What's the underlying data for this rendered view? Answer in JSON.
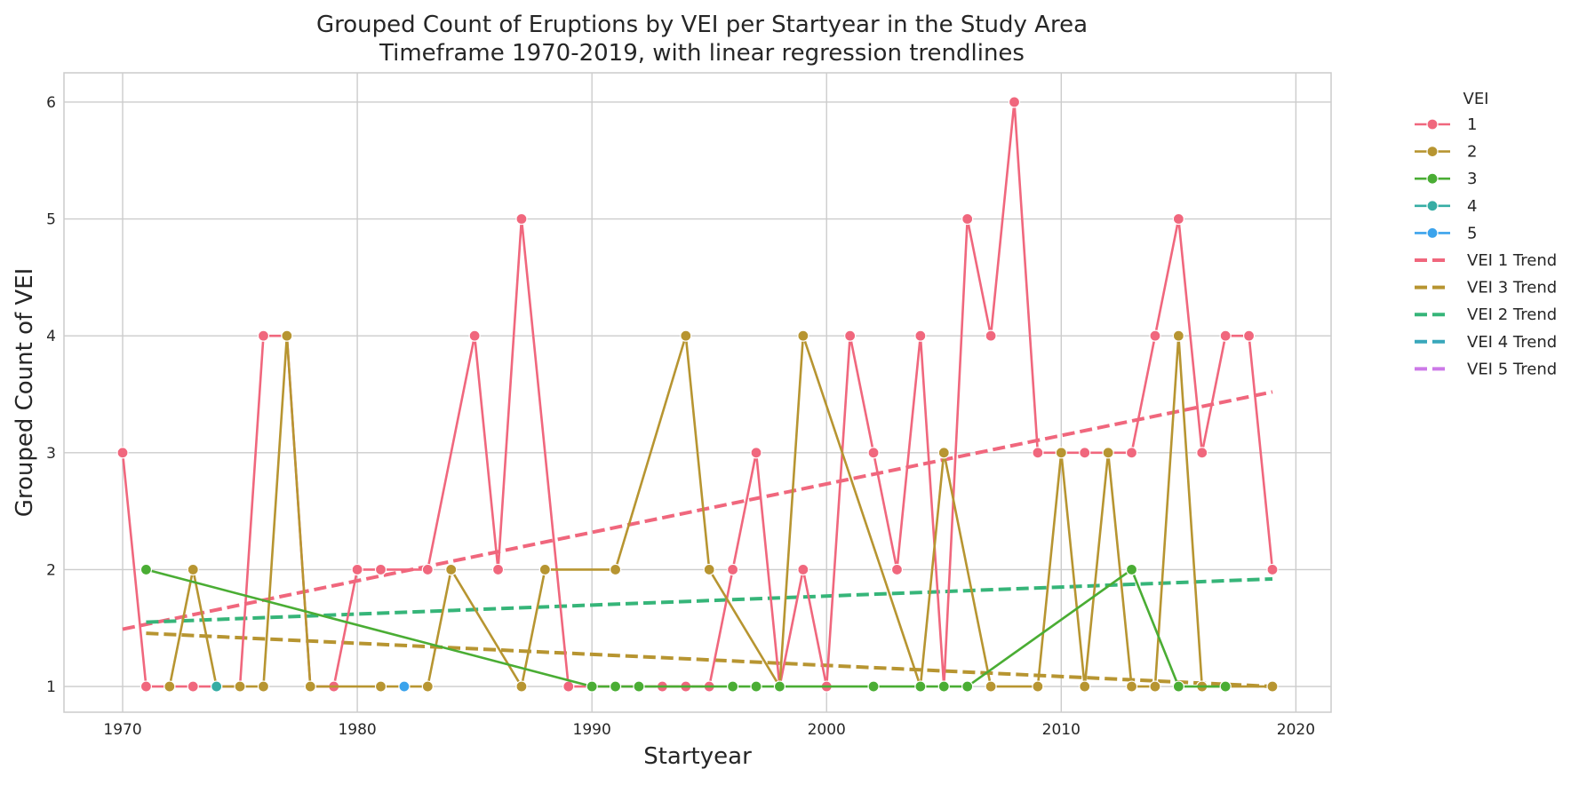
{
  "chart_data": {
    "type": "line",
    "title_lines": [
      "Grouped Count of Eruptions by VEI per Startyear in the Study Area",
      "Timeframe 1970-2019, with linear regression trendlines"
    ],
    "xlabel": "Startyear",
    "ylabel": "Grouped Count of VEI",
    "xlim": [
      1967.5,
      2021.5
    ],
    "ylim": [
      0.78,
      6.25
    ],
    "xticks": [
      1970,
      1980,
      1990,
      2000,
      2010,
      2020
    ],
    "yticks": [
      1,
      2,
      3,
      4,
      5,
      6
    ],
    "grid": true,
    "legend": {
      "title": "VEI",
      "placement": "outside-right"
    },
    "series": [
      {
        "name": "1",
        "color": "#f0677d",
        "points": [
          [
            1970,
            3
          ],
          [
            1971,
            1
          ],
          [
            1972,
            1
          ],
          [
            1973,
            1
          ],
          [
            1975,
            1
          ],
          [
            1976,
            4
          ],
          [
            1977,
            4
          ],
          [
            1978,
            1
          ],
          [
            1979,
            1
          ],
          [
            1980,
            2
          ],
          [
            1981,
            2
          ],
          [
            1983,
            2
          ],
          [
            1985,
            4
          ],
          [
            1986,
            2
          ],
          [
            1987,
            5
          ],
          [
            1989,
            1
          ],
          [
            1990,
            1
          ],
          [
            1991,
            1
          ],
          [
            1993,
            1
          ],
          [
            1994,
            1
          ],
          [
            1995,
            1
          ],
          [
            1996,
            2
          ],
          [
            1997,
            3
          ],
          [
            1998,
            1
          ],
          [
            1999,
            2
          ],
          [
            2000,
            1
          ],
          [
            2001,
            4
          ],
          [
            2002,
            3
          ],
          [
            2003,
            2
          ],
          [
            2004,
            4
          ],
          [
            2005,
            1
          ],
          [
            2006,
            5
          ],
          [
            2007,
            4
          ],
          [
            2008,
            6
          ],
          [
            2009,
            3
          ],
          [
            2011,
            3
          ],
          [
            2013,
            3
          ],
          [
            2014,
            4
          ],
          [
            2015,
            5
          ],
          [
            2016,
            3
          ],
          [
            2017,
            4
          ],
          [
            2018,
            4
          ],
          [
            2019,
            2
          ]
        ]
      },
      {
        "name": "2",
        "color": "#b79531",
        "points": [
          [
            1972,
            1
          ],
          [
            1973,
            2
          ],
          [
            1974,
            1
          ],
          [
            1975,
            1
          ],
          [
            1976,
            1
          ],
          [
            1977,
            4
          ],
          [
            1978,
            1
          ],
          [
            1981,
            1
          ],
          [
            1983,
            1
          ],
          [
            1984,
            2
          ],
          [
            1987,
            1
          ],
          [
            1988,
            2
          ],
          [
            1991,
            2
          ],
          [
            1994,
            4
          ],
          [
            1995,
            2
          ],
          [
            1998,
            1
          ],
          [
            1999,
            4
          ],
          [
            2004,
            1
          ],
          [
            2005,
            3
          ],
          [
            2007,
            1
          ],
          [
            2009,
            1
          ],
          [
            2010,
            3
          ],
          [
            2011,
            1
          ],
          [
            2012,
            3
          ],
          [
            2013,
            1
          ],
          [
            2014,
            1
          ],
          [
            2015,
            4
          ],
          [
            2016,
            1
          ],
          [
            2019,
            1
          ]
        ]
      },
      {
        "name": "3",
        "color": "#4aad34",
        "points": [
          [
            1971,
            2
          ],
          [
            1990,
            1
          ],
          [
            1991,
            1
          ],
          [
            1992,
            1
          ],
          [
            1996,
            1
          ],
          [
            1997,
            1
          ],
          [
            1998,
            1
          ],
          [
            2002,
            1
          ],
          [
            2004,
            1
          ],
          [
            2005,
            1
          ],
          [
            2006,
            1
          ],
          [
            2013,
            2
          ],
          [
            2015,
            1
          ],
          [
            2017,
            1
          ]
        ]
      },
      {
        "name": "4",
        "color": "#36ada4",
        "points": [
          [
            1974,
            1
          ]
        ]
      },
      {
        "name": "5",
        "color": "#3ba3ec",
        "points": [
          [
            1982,
            1
          ]
        ]
      }
    ],
    "trends": [
      {
        "name": "VEI 1 Trend",
        "color": "#f0677d",
        "x": [
          1970,
          2019
        ],
        "y": [
          1.49,
          3.52
        ],
        "drawn": true
      },
      {
        "name": "VEI 3 Trend",
        "color": "#b79531",
        "x": [
          1971,
          2019
        ],
        "y": [
          1.455,
          1.0
        ],
        "drawn": true
      },
      {
        "name": "VEI 2 Trend",
        "color": "#36b579",
        "x": [
          1971,
          2019
        ],
        "y": [
          1.55,
          1.92
        ],
        "drawn": true
      },
      {
        "name": "VEI 4 Trend",
        "color": "#39a7bb",
        "x": [],
        "y": [],
        "drawn": false
      },
      {
        "name": "VEI 5 Trend",
        "color": "#cc79e8",
        "x": [],
        "y": [],
        "drawn": false
      }
    ]
  }
}
